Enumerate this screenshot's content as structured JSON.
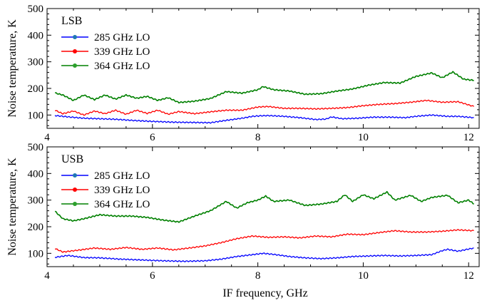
{
  "xlabel": "IF frequency, GHz",
  "chart_data": [
    {
      "type": "line",
      "panel_label": "LSB",
      "xlabel": "",
      "ylabel": "Noise temperature, K",
      "xlim": [
        4,
        12.2
      ],
      "ylim": [
        50,
        500
      ],
      "xticks": [
        4,
        6,
        8,
        10,
        12
      ],
      "yticks": [
        100,
        200,
        300,
        400,
        500
      ],
      "legend": "top-left",
      "grid": false,
      "series": [
        {
          "name": "285 GHz LO",
          "color": "#0000ff",
          "marker_color": "#1f77b4",
          "x": [
            4.15,
            4.4,
            4.7,
            5.0,
            5.3,
            5.6,
            6.0,
            6.4,
            6.8,
            7.1,
            7.4,
            7.7,
            7.9,
            8.05,
            8.2,
            8.5,
            8.8,
            9.1,
            9.3,
            9.4,
            9.6,
            9.9,
            10.2,
            10.5,
            10.8,
            11.0,
            11.3,
            11.6,
            11.8,
            12.1
          ],
          "y": [
            98,
            93,
            88,
            86,
            84,
            80,
            76,
            73,
            72,
            71,
            80,
            88,
            95,
            97,
            98,
            95,
            90,
            83,
            85,
            93,
            86,
            88,
            92,
            92,
            90,
            95,
            100,
            95,
            95,
            90
          ]
        },
        {
          "name": "339 GHz LO",
          "color": "#ff0000",
          "marker_color": "#ff0000",
          "x": [
            4.15,
            4.3,
            4.5,
            4.7,
            4.9,
            5.1,
            5.3,
            5.5,
            5.7,
            5.9,
            6.1,
            6.3,
            6.5,
            6.8,
            7.1,
            7.4,
            7.7,
            8.0,
            8.2,
            8.5,
            8.8,
            9.1,
            9.4,
            9.7,
            10.0,
            10.3,
            10.6,
            10.9,
            11.2,
            11.5,
            11.8,
            12.1
          ],
          "y": [
            118,
            105,
            115,
            100,
            115,
            105,
            118,
            103,
            118,
            106,
            118,
            103,
            113,
            105,
            112,
            118,
            118,
            130,
            132,
            125,
            125,
            123,
            125,
            128,
            135,
            140,
            143,
            148,
            155,
            148,
            150,
            132
          ]
        },
        {
          "name": "364 GHz LO",
          "color": "#008000",
          "marker_color": "#2ca02c",
          "x": [
            4.15,
            4.3,
            4.5,
            4.7,
            4.9,
            5.1,
            5.3,
            5.5,
            5.7,
            5.9,
            6.1,
            6.3,
            6.5,
            6.8,
            7.1,
            7.4,
            7.7,
            8.0,
            8.1,
            8.3,
            8.6,
            8.9,
            9.2,
            9.5,
            9.8,
            10.1,
            10.4,
            10.7,
            11.0,
            11.3,
            11.5,
            11.7,
            11.9,
            12.1
          ],
          "y": [
            183,
            175,
            155,
            175,
            158,
            175,
            160,
            175,
            163,
            170,
            155,
            165,
            147,
            152,
            162,
            188,
            182,
            195,
            207,
            195,
            190,
            178,
            180,
            190,
            198,
            212,
            222,
            220,
            245,
            258,
            240,
            262,
            235,
            230
          ]
        }
      ]
    },
    {
      "type": "line",
      "panel_label": "USB",
      "xlabel": "IF frequency, GHz",
      "ylabel": "Noise temperature, K",
      "xlim": [
        4,
        12.2
      ],
      "ylim": [
        50,
        500
      ],
      "xticks": [
        4,
        6,
        8,
        10,
        12
      ],
      "yticks": [
        100,
        200,
        300,
        400,
        500
      ],
      "legend": "top-left",
      "grid": false,
      "series": [
        {
          "name": "285 GHz LO",
          "color": "#0000ff",
          "marker_color": "#1f77b4",
          "x": [
            4.15,
            4.4,
            4.7,
            5.0,
            5.4,
            5.8,
            6.2,
            6.6,
            7.0,
            7.3,
            7.6,
            7.9,
            8.1,
            8.3,
            8.6,
            8.9,
            9.2,
            9.5,
            9.8,
            10.1,
            10.4,
            10.7,
            11.0,
            11.3,
            11.5,
            11.6,
            11.8,
            12.1
          ],
          "y": [
            85,
            92,
            84,
            83,
            78,
            75,
            72,
            70,
            72,
            78,
            88,
            95,
            100,
            96,
            88,
            83,
            80,
            83,
            88,
            90,
            92,
            90,
            92,
            95,
            110,
            115,
            108,
            120
          ]
        },
        {
          "name": "339 GHz LO",
          "color": "#ff0000",
          "marker_color": "#ff0000",
          "x": [
            4.15,
            4.3,
            4.6,
            4.9,
            5.2,
            5.5,
            5.8,
            6.1,
            6.4,
            6.7,
            7.0,
            7.3,
            7.6,
            7.9,
            8.2,
            8.5,
            8.8,
            9.1,
            9.4,
            9.7,
            10.0,
            10.3,
            10.6,
            10.9,
            11.2,
            11.5,
            11.8,
            12.1
          ],
          "y": [
            118,
            105,
            112,
            120,
            115,
            122,
            115,
            120,
            113,
            120,
            128,
            140,
            155,
            165,
            160,
            162,
            158,
            165,
            162,
            172,
            170,
            178,
            185,
            180,
            180,
            183,
            188,
            185
          ]
        },
        {
          "name": "364 GHz LO",
          "color": "#008000",
          "marker_color": "#2ca02c",
          "x": [
            4.15,
            4.3,
            4.5,
            4.7,
            5.0,
            5.3,
            5.6,
            5.9,
            6.2,
            6.5,
            6.8,
            7.1,
            7.4,
            7.6,
            7.8,
            8.0,
            8.15,
            8.3,
            8.6,
            8.9,
            9.2,
            9.5,
            9.65,
            9.8,
            10.0,
            10.2,
            10.45,
            10.6,
            10.9,
            11.1,
            11.3,
            11.6,
            11.8,
            12.0,
            12.1
          ],
          "y": [
            258,
            230,
            222,
            230,
            245,
            240,
            240,
            235,
            225,
            218,
            240,
            260,
            295,
            270,
            290,
            300,
            315,
            295,
            300,
            280,
            285,
            295,
            320,
            295,
            320,
            305,
            330,
            300,
            318,
            295,
            310,
            318,
            290,
            300,
            285
          ]
        }
      ]
    }
  ]
}
